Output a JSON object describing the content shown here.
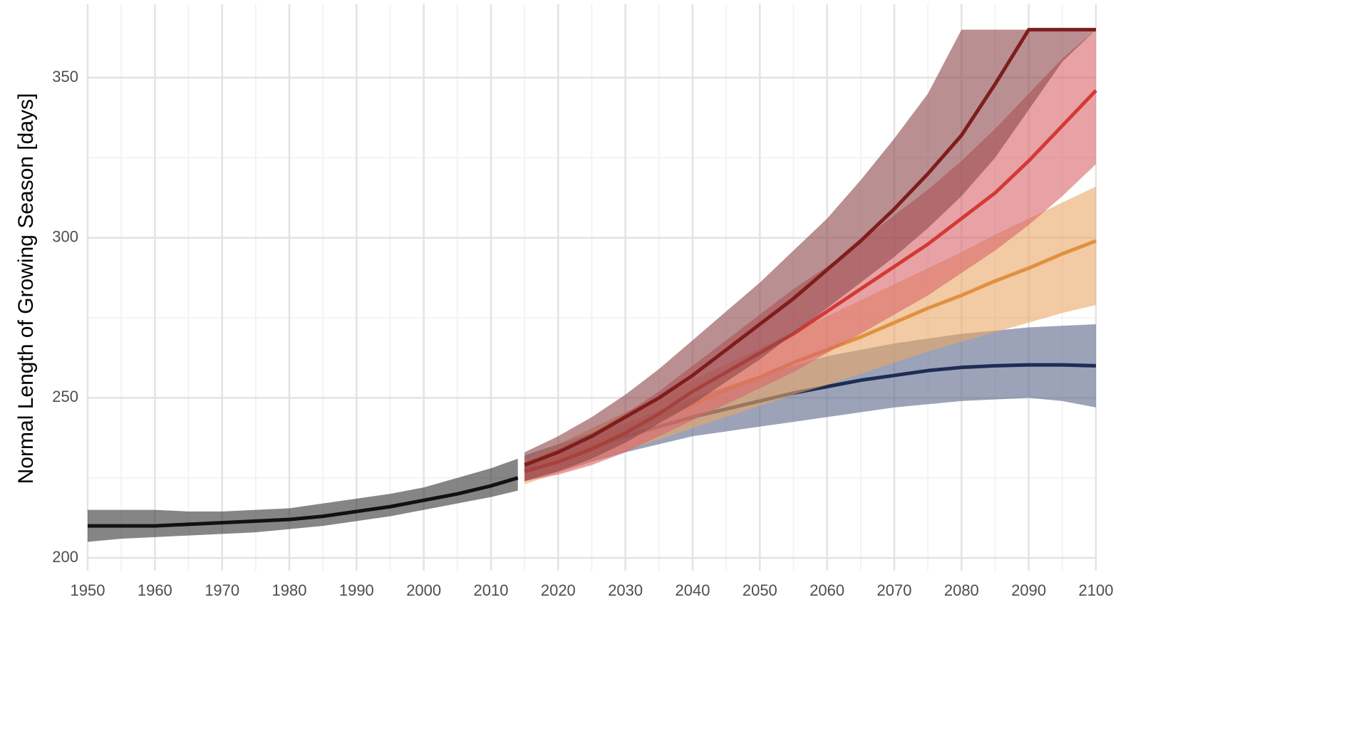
{
  "chart_data": {
    "type": "line",
    "y_label": "Normal Length of Growing Season [days]",
    "xlim": [
      1950,
      2100
    ],
    "ylim": [
      196,
      373
    ],
    "xticks": [
      1950,
      1960,
      1970,
      1980,
      1990,
      2000,
      2010,
      2020,
      2030,
      2040,
      2050,
      2060,
      2070,
      2080,
      2090,
      2100
    ],
    "yticks": [
      200,
      250,
      300,
      350
    ],
    "x_minor_grid": [
      1955,
      1965,
      1975,
      1985,
      1995,
      2005,
      2015,
      2025,
      2035,
      2045,
      2055,
      2065,
      2075,
      2085,
      2095
    ],
    "y_minor_grid": [
      225,
      275,
      325
    ],
    "grid": true,
    "series": [
      {
        "color": "#111111",
        "band_color": "#333333",
        "x": [
          1950,
          1955,
          1960,
          1965,
          1970,
          1975,
          1980,
          1985,
          1990,
          1995,
          2000,
          2005,
          2010,
          2014
        ],
        "values": [
          210,
          210,
          210,
          210.5,
          211,
          211.5,
          212,
          213,
          214.5,
          216,
          218,
          220,
          222.5,
          225
        ],
        "lower": [
          205,
          206,
          206.5,
          207,
          207.5,
          208,
          209,
          210,
          211.5,
          213,
          215,
          217,
          219,
          221
        ],
        "upper": [
          215,
          215,
          215,
          214.5,
          214.5,
          215,
          215.5,
          217,
          218.5,
          220,
          222,
          225,
          228,
          231
        ]
      },
      {
        "color": "#1f2d55",
        "band_color": "#5a6688",
        "x": [
          2015,
          2020,
          2025,
          2030,
          2035,
          2040,
          2045,
          2050,
          2055,
          2060,
          2065,
          2070,
          2075,
          2080,
          2085,
          2090,
          2095,
          2100
        ],
        "values": [
          228,
          231,
          234.5,
          238,
          241,
          244,
          246.5,
          249,
          251.5,
          253.5,
          255.5,
          257,
          258.5,
          259.5,
          260,
          260.3,
          260.3,
          260
        ],
        "lower": [
          224,
          227,
          230,
          233,
          235.5,
          238,
          239.5,
          241,
          242.5,
          244,
          245.5,
          247,
          248,
          249,
          249.5,
          250,
          249,
          247
        ],
        "upper": [
          232,
          235.5,
          239,
          242,
          246,
          250,
          253.5,
          257,
          260,
          263,
          265,
          267,
          268.5,
          270,
          271,
          272,
          272.5,
          273
        ]
      },
      {
        "color": "#e0913f",
        "band_color": "#e9a766",
        "x": [
          2015,
          2020,
          2025,
          2030,
          2035,
          2040,
          2045,
          2050,
          2055,
          2060,
          2065,
          2070,
          2075,
          2080,
          2085,
          2090,
          2095,
          2100
        ],
        "values": [
          227,
          231,
          235.5,
          239.5,
          244,
          248,
          252.5,
          256.5,
          261,
          265,
          269,
          273.5,
          278,
          282,
          286.5,
          290.5,
          295,
          299
        ],
        "lower": [
          223,
          226.5,
          230,
          233.5,
          237,
          240.5,
          244,
          247.5,
          251,
          254,
          257.5,
          261,
          264.5,
          267.5,
          270.5,
          273.5,
          276.5,
          279
        ],
        "upper": [
          231,
          235.5,
          240.5,
          245.5,
          250.5,
          255.5,
          260.5,
          265.5,
          270.5,
          275.5,
          280.5,
          285.5,
          290.5,
          295.5,
          301,
          306,
          311,
          316
        ]
      },
      {
        "color": "#d23a33",
        "band_color": "#d9646a",
        "x": [
          2015,
          2020,
          2025,
          2030,
          2035,
          2040,
          2045,
          2050,
          2055,
          2060,
          2065,
          2070,
          2075,
          2080,
          2085,
          2090,
          2095,
          2100
        ],
        "values": [
          227,
          230,
          234,
          239,
          245,
          252,
          258,
          264,
          270,
          277,
          284,
          291,
          298,
          306,
          314,
          324,
          335,
          346
        ],
        "lower": [
          224,
          226,
          229,
          233,
          238,
          243,
          248,
          253,
          258,
          264,
          270,
          276,
          282,
          289,
          296,
          304,
          313,
          323
        ],
        "upper": [
          230,
          234,
          239,
          245,
          252,
          260,
          268,
          276,
          284,
          291,
          299,
          307,
          315,
          324,
          334,
          345,
          356,
          365
        ]
      },
      {
        "color": "#7f1d1d",
        "band_color": "#8c4548",
        "x": [
          2015,
          2020,
          2025,
          2030,
          2035,
          2040,
          2045,
          2050,
          2055,
          2060,
          2065,
          2070,
          2075,
          2080,
          2085,
          2090,
          2095,
          2100
        ],
        "values": [
          229,
          233,
          238,
          244,
          250,
          257,
          265,
          273,
          281,
          290,
          299,
          309,
          320,
          332,
          348,
          365,
          365,
          365
        ],
        "lower": [
          224,
          227,
          231,
          236,
          242,
          248,
          255,
          262,
          270,
          278,
          286,
          294,
          303,
          313,
          325,
          340,
          355,
          365
        ],
        "upper": [
          233,
          238,
          244,
          251,
          259,
          268,
          277,
          286,
          296,
          306,
          318,
          331,
          345,
          365,
          365,
          365,
          365,
          365
        ]
      }
    ]
  }
}
